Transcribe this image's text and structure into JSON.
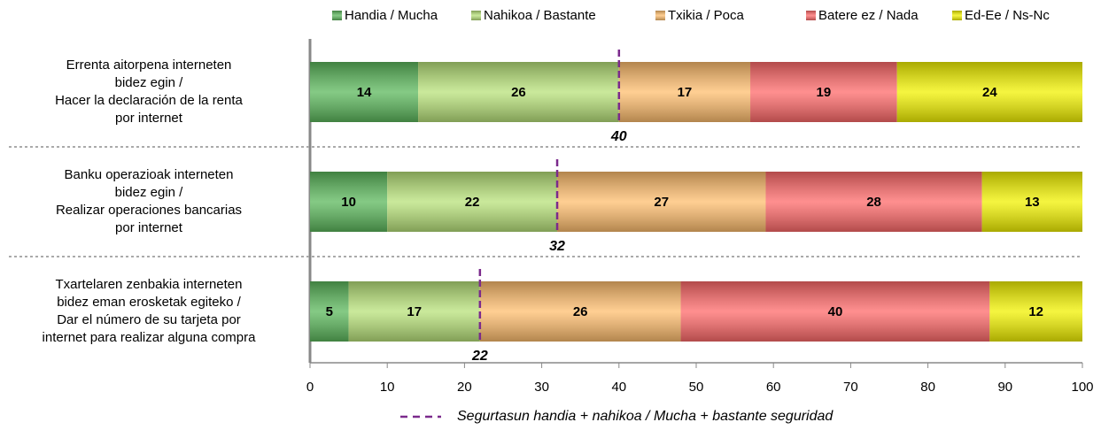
{
  "chart_data": {
    "type": "stacked-barh",
    "categories": [
      "Errenta aitorpena interneten\nbidez egin /\nHacer la declaración de la renta\npor internet",
      "Banku operazioak interneten\nbidez egin /\nRealizar operaciones bancarias\npor internet",
      "Txartelaren zenbakia interneten\nbidez eman erosketak egiteko /\nDar el número de su tarjeta por\ninternet para realizar alguna compra"
    ],
    "series": [
      {
        "name": "Handia / Mucha",
        "color": "#5cb85c",
        "values": [
          14,
          10,
          5
        ]
      },
      {
        "name": "Nahikoa / Bastante",
        "color": "#b8e27a",
        "values": [
          26,
          22,
          17
        ]
      },
      {
        "name": "Txikia / Poca",
        "color": "#ffbe6e",
        "values": [
          17,
          27,
          26
        ]
      },
      {
        "name": "Batere ez / Nada",
        "color": "#ff6a6a",
        "values": [
          19,
          28,
          40
        ]
      },
      {
        "name": "Ed-Ee / Ns-Nc",
        "color": "#f2f200",
        "values": [
          24,
          13,
          12
        ]
      }
    ],
    "markers": {
      "name": "Segurtasun handia + nahikoa / Mucha + bastante seguridad",
      "color": "#7b2a8c",
      "values": [
        40,
        32,
        22
      ]
    },
    "xlim": [
      0,
      100
    ],
    "xticks": [
      0,
      10,
      20,
      30,
      40,
      50,
      60,
      70,
      80,
      90,
      100
    ]
  }
}
